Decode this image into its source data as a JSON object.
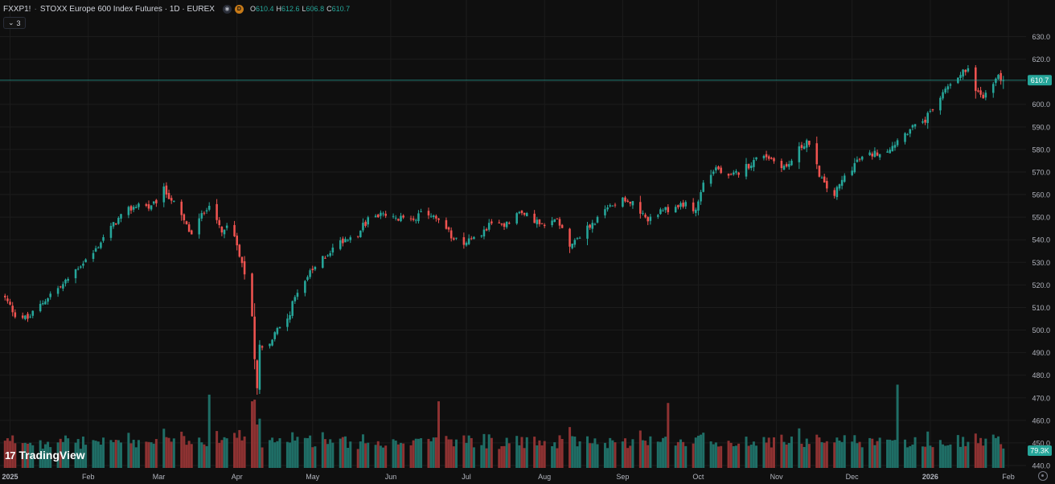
{
  "header": {
    "symbol": "FXXP1!",
    "separator": "·",
    "title": "STOXX Europe 600 Index Futures · 1D · EUREX",
    "delay_badge": "D",
    "ohlc": {
      "o_label": "O",
      "o_value": "610.4",
      "h_label": "H",
      "h_value": "612.6",
      "l_label": "L",
      "l_value": "606.8",
      "c_label": "C",
      "c_value": "610.7"
    }
  },
  "indicator_toggle": {
    "chevron": "⌄",
    "count": "3"
  },
  "logo": {
    "mark": "17",
    "text": "TradingView"
  },
  "icons": [
    "eye-icon",
    "delay-icon",
    "chevron-down-icon",
    "tradingview-logo-icon",
    "settings-icon"
  ],
  "colors": {
    "background": "#0f0f0f",
    "grid": "#1c1c1c",
    "up": "#26a69a",
    "down": "#ef5350",
    "up_volume": "#1f6e66",
    "down_volume": "#8e3232",
    "axis_text": "#b2b5be",
    "price_line": "#26a69a"
  },
  "chart_data": {
    "type": "candlestick",
    "symbol": "FXXP1!",
    "interval": "1D",
    "last_price": 610.7,
    "last_price_label": "610.7",
    "last_volume_label": "79.3K",
    "ylim": [
      440,
      632
    ],
    "y_ticks": [
      630,
      620,
      610,
      600,
      590,
      580,
      570,
      560,
      550,
      540,
      530,
      520,
      510,
      500,
      490,
      480,
      470,
      460,
      450,
      440
    ],
    "y_tick_labels": [
      "630.0",
      "620.0",
      "610.0",
      "600.0",
      "590.0",
      "580.0",
      "570.0",
      "560.0",
      "550.0",
      "540.0",
      "530.0",
      "520.0",
      "510.0",
      "500.0",
      "490.0",
      "480.0",
      "470.0",
      "460.0",
      "450.0",
      "440.0"
    ],
    "x_labels": [
      {
        "label": "2025",
        "date": "2025-01-01",
        "bold": true
      },
      {
        "label": "Feb",
        "date": "2025-02-01"
      },
      {
        "label": "Mar",
        "date": "2025-03-01"
      },
      {
        "label": "Apr",
        "date": "2025-04-01"
      },
      {
        "label": "May",
        "date": "2025-05-01"
      },
      {
        "label": "Jun",
        "date": "2025-06-01"
      },
      {
        "label": "Jul",
        "date": "2025-07-01"
      },
      {
        "label": "Aug",
        "date": "2025-08-01"
      },
      {
        "label": "Sep",
        "date": "2025-09-01"
      },
      {
        "label": "Oct",
        "date": "2025-10-01"
      },
      {
        "label": "Nov",
        "date": "2025-11-01"
      },
      {
        "label": "Dec",
        "date": "2025-12-01"
      },
      {
        "label": "2026",
        "date": "2026-01-01",
        "bold": true
      },
      {
        "label": "Feb",
        "date": "2026-02-01"
      }
    ],
    "x_range": [
      "2024-12-28",
      "2026-02-08"
    ],
    "close_anchors": [
      [
        "2024-12-30",
        514
      ],
      [
        "2025-01-03",
        507
      ],
      [
        "2025-01-08",
        505
      ],
      [
        "2025-01-13",
        511
      ],
      [
        "2025-01-17",
        516
      ],
      [
        "2025-01-22",
        520
      ],
      [
        "2025-01-28",
        528
      ],
      [
        "2025-02-03",
        534
      ],
      [
        "2025-02-07",
        541
      ],
      [
        "2025-02-12",
        548
      ],
      [
        "2025-02-17",
        553
      ],
      [
        "2025-02-21",
        556
      ],
      [
        "2025-02-26",
        554
      ],
      [
        "2025-03-03",
        562
      ],
      [
        "2025-03-06",
        558
      ],
      [
        "2025-03-11",
        548
      ],
      [
        "2025-03-14",
        542
      ],
      [
        "2025-03-19",
        553
      ],
      [
        "2025-03-21",
        556
      ],
      [
        "2025-03-26",
        544
      ],
      [
        "2025-03-28",
        546
      ],
      [
        "2025-04-01",
        538
      ],
      [
        "2025-04-03",
        530
      ],
      [
        "2025-04-07",
        507
      ],
      [
        "2025-04-08",
        486
      ],
      [
        "2025-04-09",
        475
      ],
      [
        "2025-04-10",
        493
      ],
      [
        "2025-04-14",
        494
      ],
      [
        "2025-04-17",
        500
      ],
      [
        "2025-04-22",
        508
      ],
      [
        "2025-04-25",
        518
      ],
      [
        "2025-04-30",
        525
      ],
      [
        "2025-05-06",
        533
      ],
      [
        "2025-05-13",
        540
      ],
      [
        "2025-05-19",
        543
      ],
      [
        "2025-05-23",
        549
      ],
      [
        "2025-05-28",
        551
      ],
      [
        "2025-06-03",
        549
      ],
      [
        "2025-06-10",
        550
      ],
      [
        "2025-06-16",
        552
      ],
      [
        "2025-06-20",
        548
      ],
      [
        "2025-06-25",
        542
      ],
      [
        "2025-06-30",
        539
      ],
      [
        "2025-07-04",
        540
      ],
      [
        "2025-07-10",
        546
      ],
      [
        "2025-07-16",
        547
      ],
      [
        "2025-07-22",
        552
      ],
      [
        "2025-07-28",
        549
      ],
      [
        "2025-08-01",
        545
      ],
      [
        "2025-08-06",
        550
      ],
      [
        "2025-08-11",
        538
      ],
      [
        "2025-08-15",
        542
      ],
      [
        "2025-08-21",
        548
      ],
      [
        "2025-08-27",
        555
      ],
      [
        "2025-09-01",
        559
      ],
      [
        "2025-09-05",
        556
      ],
      [
        "2025-09-10",
        549
      ],
      [
        "2025-09-16",
        552
      ],
      [
        "2025-09-22",
        555
      ],
      [
        "2025-09-25",
        556
      ],
      [
        "2025-09-30",
        553
      ],
      [
        "2025-10-03",
        565
      ],
      [
        "2025-10-08",
        572
      ],
      [
        "2025-10-13",
        567
      ],
      [
        "2025-10-17",
        570
      ],
      [
        "2025-10-22",
        574
      ],
      [
        "2025-10-27",
        578
      ],
      [
        "2025-10-31",
        575
      ],
      [
        "2025-11-05",
        572
      ],
      [
        "2025-11-10",
        580
      ],
      [
        "2025-11-13",
        584
      ],
      [
        "2025-11-17",
        572
      ],
      [
        "2025-11-20",
        564
      ],
      [
        "2025-11-24",
        560
      ],
      [
        "2025-11-28",
        568
      ],
      [
        "2025-12-03",
        575
      ],
      [
        "2025-12-09",
        578
      ],
      [
        "2025-12-15",
        580
      ],
      [
        "2025-12-19",
        584
      ],
      [
        "2025-12-24",
        589
      ],
      [
        "2025-12-30",
        593
      ],
      [
        "2026-01-05",
        603
      ],
      [
        "2026-01-09",
        610
      ],
      [
        "2026-01-13",
        614
      ],
      [
        "2026-01-16",
        615
      ],
      [
        "2026-01-20",
        605
      ],
      [
        "2026-01-22",
        603
      ],
      [
        "2026-01-26",
        609
      ],
      [
        "2026-01-28",
        612
      ],
      [
        "2026-01-30",
        610.7
      ]
    ],
    "volume_ylim": [
      0,
      140000
    ],
    "volume_spikes": [
      [
        "2025-03-21",
        88000
      ],
      [
        "2025-04-07",
        80000
      ],
      [
        "2025-04-08",
        82000
      ],
      [
        "2025-06-20",
        80000
      ],
      [
        "2025-09-19",
        78000
      ],
      [
        "2025-12-19",
        100000
      ]
    ]
  }
}
